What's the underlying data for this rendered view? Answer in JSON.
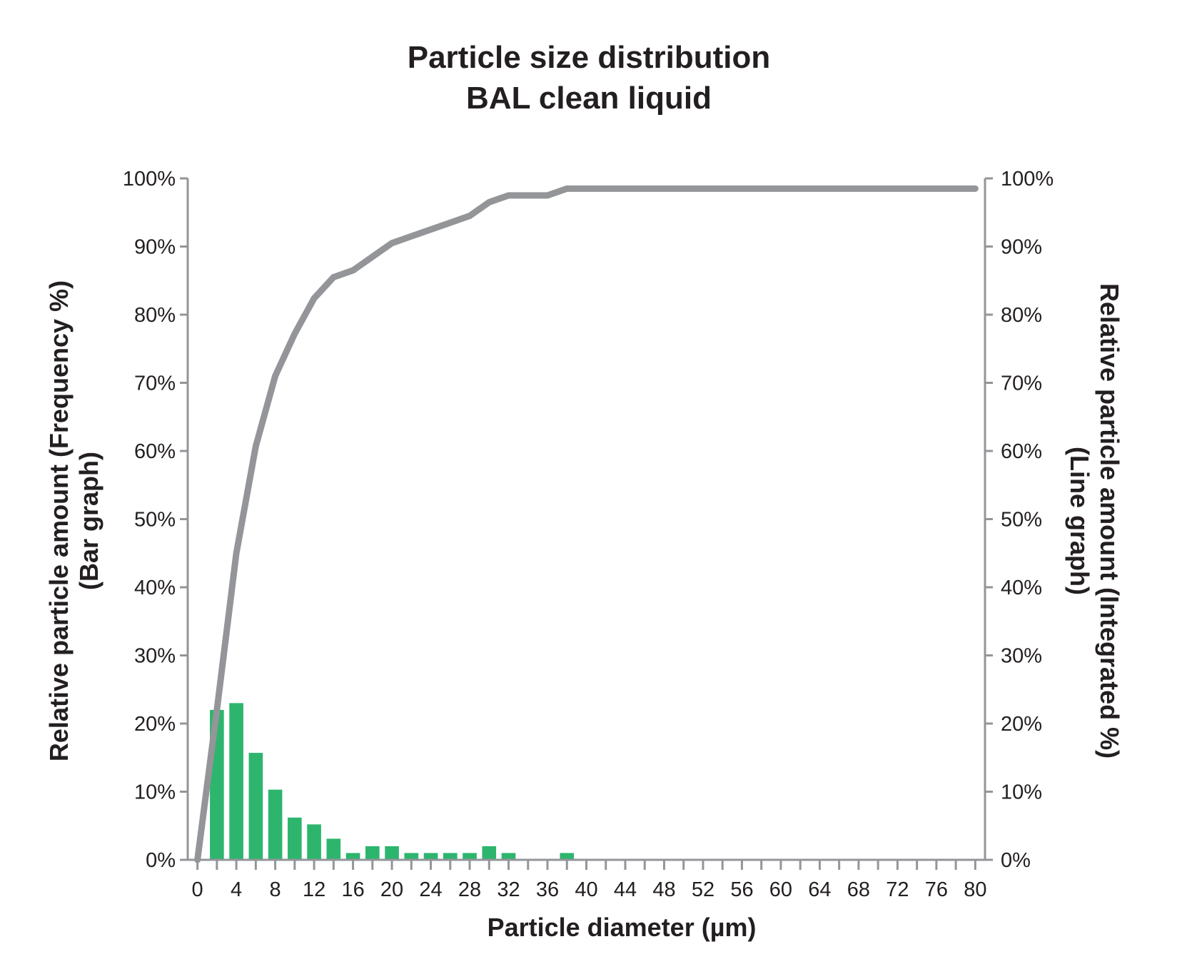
{
  "chart_data": {
    "type": "bar",
    "title_lines": [
      "Particle size distribution",
      "BAL clean liquid"
    ],
    "xlabel": "Particle diameter (µm)",
    "ylabel_left_lines": [
      "Relative particle amount (Frequency %)",
      "(Bar graph)"
    ],
    "ylabel_right_lines": [
      "Relative particle amount (Integrated %)",
      "(Line graph)"
    ],
    "xlim": [
      -1,
      81
    ],
    "ylim": [
      0,
      100
    ],
    "x_ticks": [
      0,
      4,
      8,
      12,
      16,
      20,
      24,
      28,
      32,
      36,
      40,
      44,
      48,
      52,
      56,
      60,
      64,
      68,
      72,
      76,
      80
    ],
    "x_tick_labels": [
      "0",
      "4",
      "8",
      "12",
      "16",
      "20",
      "24",
      "28",
      "32",
      "36",
      "40",
      "44",
      "48",
      "52",
      "56",
      "60",
      "64",
      "68",
      "72",
      "76",
      "80"
    ],
    "y_ticks": [
      0,
      10,
      20,
      30,
      40,
      50,
      60,
      70,
      80,
      90,
      100
    ],
    "y_tick_labels_left": [
      "0%",
      "10%",
      "20%",
      "30%",
      "40%",
      "50%",
      "60%",
      "70%",
      "80%",
      "90%",
      "100%"
    ],
    "y_tick_labels_right": [
      "0%",
      "10%",
      "20%",
      "30%",
      "40%",
      "50%",
      "60%",
      "70%",
      "80%",
      "90%",
      "100%"
    ],
    "bar_series": {
      "name": "(Bar graph)",
      "color": "#2db56e",
      "x": [
        2,
        4,
        6,
        8,
        10,
        12,
        14,
        16,
        18,
        20,
        22,
        24,
        26,
        28,
        30,
        32,
        34,
        36,
        38
      ],
      "values": [
        22,
        23,
        15.7,
        10.3,
        6.2,
        5.2,
        3.1,
        1.0,
        2.0,
        2.0,
        1.0,
        1.0,
        1.0,
        1.0,
        2.0,
        1.0,
        0,
        0,
        1.0
      ]
    },
    "line_series": {
      "name": "(Line graph)",
      "color": "#939598",
      "x": [
        0,
        2,
        4,
        6,
        8,
        10,
        12,
        14,
        16,
        18,
        20,
        22,
        24,
        26,
        28,
        30,
        32,
        34,
        36,
        38,
        40,
        80
      ],
      "values": [
        0,
        22,
        45,
        60.7,
        71,
        77.2,
        82.4,
        85.5,
        86.5,
        88.5,
        90.5,
        91.5,
        92.5,
        93.5,
        94.5,
        96.5,
        97.5,
        97.5,
        97.5,
        98.5,
        98.5,
        98.5
      ]
    },
    "grid": false,
    "legend": "none"
  }
}
